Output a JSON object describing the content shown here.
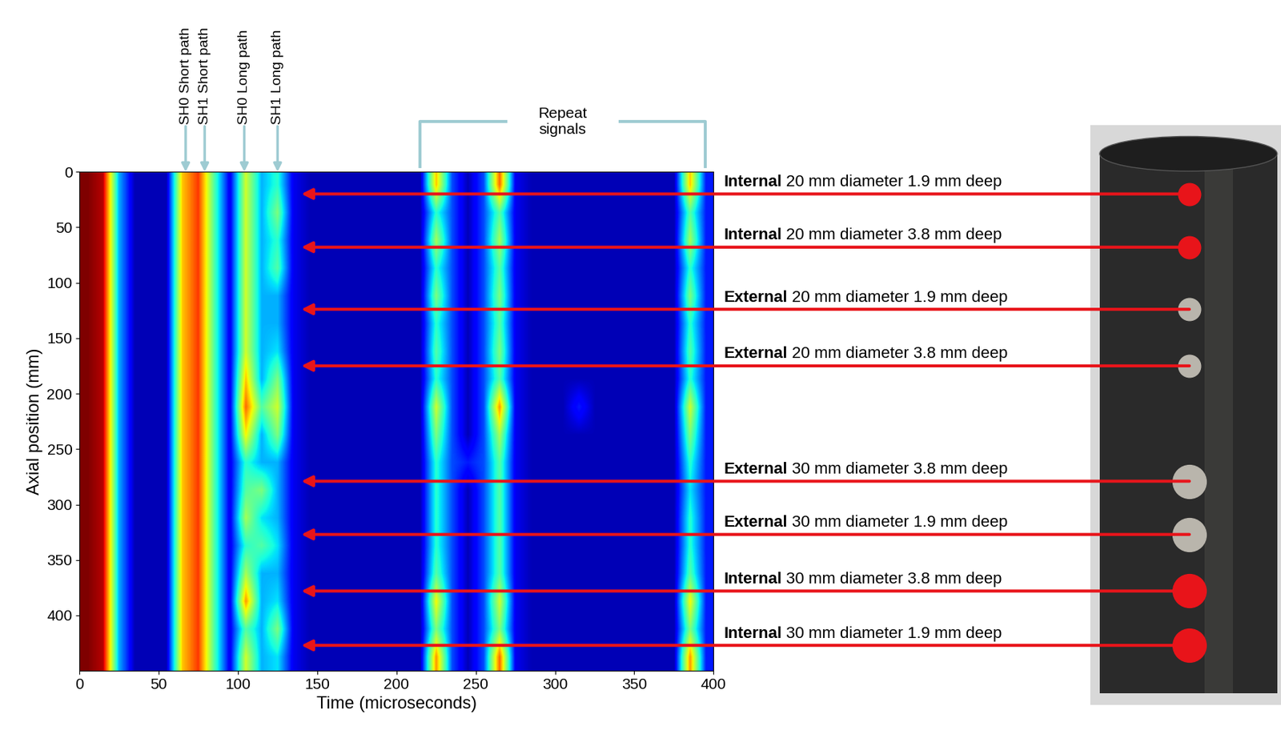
{
  "chart_data": {
    "type": "heatmap",
    "x_label": "Time (microseconds)",
    "y_label": "Axial position (mm)",
    "xlim": [
      0,
      400
    ],
    "ylim": [
      450,
      0
    ],
    "xticks": [
      0,
      50,
      100,
      150,
      200,
      250,
      300,
      350,
      400
    ],
    "yticks": [
      0,
      50,
      100,
      150,
      200,
      250,
      300,
      350,
      400
    ],
    "cells": {
      "x_edges": [
        0,
        10,
        20,
        30,
        40,
        50,
        60,
        70,
        80,
        90,
        100,
        110,
        120,
        130,
        140,
        150,
        160,
        170,
        180,
        190,
        200,
        210,
        220,
        230,
        240,
        250,
        260,
        270,
        280,
        290,
        300,
        310,
        320,
        330,
        340,
        350,
        360,
        370,
        380,
        390,
        400
      ],
      "y_edges": [
        0,
        25,
        50,
        75,
        100,
        125,
        150,
        175,
        200,
        225,
        250,
        275,
        300,
        325,
        350,
        375,
        400,
        425,
        450
      ],
      "value_range": [
        0,
        1
      ],
      "values": [
        [
          1.0,
          0.95,
          0.3,
          0.05,
          0.05,
          0.05,
          0.7,
          0.85,
          0.45,
          0.1,
          0.6,
          0.3,
          0.4,
          0.1,
          0.05,
          0.05,
          0.05,
          0.05,
          0.05,
          0.05,
          0.05,
          0.05,
          0.7,
          0.2,
          0.05,
          0.2,
          0.8,
          0.1,
          0.05,
          0.05,
          0.05,
          0.05,
          0.05,
          0.05,
          0.05,
          0.05,
          0.05,
          0.05,
          0.7,
          0.15
        ],
        [
          1.0,
          0.95,
          0.3,
          0.05,
          0.05,
          0.05,
          0.7,
          0.85,
          0.45,
          0.1,
          0.6,
          0.3,
          0.5,
          0.1,
          0.05,
          0.05,
          0.05,
          0.05,
          0.05,
          0.05,
          0.05,
          0.05,
          0.4,
          0.2,
          0.05,
          0.2,
          0.45,
          0.1,
          0.05,
          0.05,
          0.05,
          0.05,
          0.05,
          0.05,
          0.05,
          0.05,
          0.05,
          0.05,
          0.45,
          0.15
        ],
        [
          1.0,
          0.95,
          0.3,
          0.05,
          0.05,
          0.05,
          0.7,
          0.85,
          0.45,
          0.1,
          0.6,
          0.3,
          0.4,
          0.1,
          0.05,
          0.05,
          0.05,
          0.05,
          0.05,
          0.05,
          0.05,
          0.05,
          0.55,
          0.2,
          0.05,
          0.2,
          0.55,
          0.1,
          0.05,
          0.05,
          0.05,
          0.05,
          0.05,
          0.05,
          0.05,
          0.05,
          0.05,
          0.05,
          0.55,
          0.15
        ],
        [
          1.0,
          0.95,
          0.3,
          0.05,
          0.05,
          0.05,
          0.7,
          0.85,
          0.45,
          0.1,
          0.6,
          0.3,
          0.45,
          0.1,
          0.05,
          0.05,
          0.05,
          0.05,
          0.05,
          0.05,
          0.05,
          0.05,
          0.4,
          0.2,
          0.05,
          0.2,
          0.45,
          0.1,
          0.05,
          0.05,
          0.05,
          0.05,
          0.05,
          0.05,
          0.05,
          0.05,
          0.05,
          0.05,
          0.4,
          0.15
        ],
        [
          1.0,
          0.95,
          0.3,
          0.05,
          0.05,
          0.05,
          0.7,
          0.85,
          0.45,
          0.1,
          0.6,
          0.3,
          0.3,
          0.1,
          0.05,
          0.05,
          0.05,
          0.05,
          0.05,
          0.05,
          0.05,
          0.05,
          0.5,
          0.2,
          0.05,
          0.2,
          0.5,
          0.1,
          0.05,
          0.05,
          0.05,
          0.05,
          0.05,
          0.05,
          0.05,
          0.05,
          0.05,
          0.05,
          0.5,
          0.15
        ],
        [
          1.0,
          0.95,
          0.3,
          0.05,
          0.05,
          0.05,
          0.7,
          0.85,
          0.45,
          0.1,
          0.6,
          0.3,
          0.3,
          0.1,
          0.05,
          0.05,
          0.05,
          0.05,
          0.05,
          0.05,
          0.05,
          0.05,
          0.4,
          0.2,
          0.05,
          0.2,
          0.45,
          0.1,
          0.05,
          0.05,
          0.05,
          0.05,
          0.05,
          0.05,
          0.05,
          0.05,
          0.05,
          0.05,
          0.4,
          0.15
        ],
        [
          1.0,
          0.95,
          0.3,
          0.05,
          0.05,
          0.05,
          0.7,
          0.85,
          0.45,
          0.1,
          0.6,
          0.3,
          0.35,
          0.1,
          0.05,
          0.05,
          0.05,
          0.05,
          0.05,
          0.05,
          0.05,
          0.05,
          0.45,
          0.2,
          0.05,
          0.2,
          0.5,
          0.1,
          0.05,
          0.05,
          0.05,
          0.05,
          0.05,
          0.05,
          0.05,
          0.05,
          0.05,
          0.05,
          0.45,
          0.15
        ],
        [
          1.0,
          0.95,
          0.3,
          0.05,
          0.05,
          0.05,
          0.7,
          0.85,
          0.45,
          0.1,
          0.7,
          0.3,
          0.5,
          0.1,
          0.05,
          0.05,
          0.05,
          0.05,
          0.05,
          0.05,
          0.05,
          0.05,
          0.4,
          0.2,
          0.05,
          0.2,
          0.45,
          0.1,
          0.05,
          0.05,
          0.05,
          0.05,
          0.05,
          0.05,
          0.05,
          0.05,
          0.05,
          0.05,
          0.4,
          0.15
        ],
        [
          1.0,
          0.95,
          0.3,
          0.05,
          0.05,
          0.05,
          0.7,
          0.85,
          0.45,
          0.1,
          0.8,
          0.45,
          0.6,
          0.1,
          0.05,
          0.05,
          0.05,
          0.05,
          0.05,
          0.05,
          0.05,
          0.05,
          0.6,
          0.2,
          0.05,
          0.2,
          0.75,
          0.1,
          0.05,
          0.05,
          0.05,
          0.15,
          0.05,
          0.05,
          0.05,
          0.05,
          0.05,
          0.05,
          0.6,
          0.15
        ],
        [
          1.0,
          0.95,
          0.3,
          0.05,
          0.05,
          0.05,
          0.7,
          0.85,
          0.45,
          0.1,
          0.65,
          0.3,
          0.5,
          0.1,
          0.05,
          0.05,
          0.05,
          0.05,
          0.05,
          0.05,
          0.05,
          0.05,
          0.5,
          0.2,
          0.05,
          0.2,
          0.55,
          0.1,
          0.05,
          0.05,
          0.05,
          0.05,
          0.05,
          0.05,
          0.05,
          0.05,
          0.05,
          0.05,
          0.5,
          0.15
        ],
        [
          1.0,
          0.95,
          0.3,
          0.05,
          0.05,
          0.05,
          0.7,
          0.85,
          0.45,
          0.1,
          0.4,
          0.3,
          0.3,
          0.1,
          0.05,
          0.05,
          0.05,
          0.05,
          0.05,
          0.05,
          0.05,
          0.05,
          0.4,
          0.2,
          0.15,
          0.2,
          0.45,
          0.1,
          0.05,
          0.05,
          0.05,
          0.05,
          0.05,
          0.05,
          0.05,
          0.05,
          0.05,
          0.05,
          0.4,
          0.15
        ],
        [
          1.0,
          0.95,
          0.3,
          0.05,
          0.05,
          0.05,
          0.7,
          0.85,
          0.45,
          0.1,
          0.45,
          0.5,
          0.3,
          0.1,
          0.05,
          0.05,
          0.05,
          0.05,
          0.05,
          0.05,
          0.05,
          0.05,
          0.4,
          0.2,
          0.05,
          0.2,
          0.45,
          0.1,
          0.05,
          0.05,
          0.05,
          0.05,
          0.05,
          0.05,
          0.05,
          0.05,
          0.05,
          0.05,
          0.35,
          0.15
        ],
        [
          1.0,
          0.95,
          0.3,
          0.05,
          0.05,
          0.05,
          0.7,
          0.85,
          0.45,
          0.1,
          0.55,
          0.35,
          0.3,
          0.1,
          0.05,
          0.05,
          0.05,
          0.05,
          0.05,
          0.05,
          0.05,
          0.05,
          0.4,
          0.2,
          0.05,
          0.2,
          0.45,
          0.1,
          0.05,
          0.05,
          0.05,
          0.05,
          0.05,
          0.05,
          0.05,
          0.05,
          0.05,
          0.05,
          0.4,
          0.15
        ],
        [
          1.0,
          0.95,
          0.3,
          0.05,
          0.05,
          0.05,
          0.7,
          0.85,
          0.45,
          0.1,
          0.4,
          0.45,
          0.35,
          0.1,
          0.05,
          0.05,
          0.05,
          0.05,
          0.05,
          0.05,
          0.05,
          0.05,
          0.4,
          0.2,
          0.05,
          0.2,
          0.45,
          0.1,
          0.05,
          0.05,
          0.05,
          0.05,
          0.05,
          0.05,
          0.05,
          0.05,
          0.05,
          0.05,
          0.4,
          0.15
        ],
        [
          1.0,
          0.95,
          0.3,
          0.05,
          0.05,
          0.05,
          0.7,
          0.85,
          0.45,
          0.1,
          0.55,
          0.3,
          0.3,
          0.1,
          0.05,
          0.05,
          0.05,
          0.05,
          0.05,
          0.05,
          0.05,
          0.05,
          0.45,
          0.2,
          0.05,
          0.2,
          0.45,
          0.1,
          0.05,
          0.05,
          0.05,
          0.05,
          0.05,
          0.05,
          0.05,
          0.05,
          0.05,
          0.05,
          0.45,
          0.15
        ],
        [
          1.0,
          0.95,
          0.3,
          0.05,
          0.05,
          0.05,
          0.7,
          0.85,
          0.45,
          0.1,
          0.75,
          0.3,
          0.35,
          0.1,
          0.05,
          0.05,
          0.05,
          0.05,
          0.05,
          0.05,
          0.05,
          0.05,
          0.65,
          0.2,
          0.05,
          0.2,
          0.6,
          0.1,
          0.05,
          0.05,
          0.05,
          0.05,
          0.05,
          0.05,
          0.05,
          0.05,
          0.05,
          0.05,
          0.65,
          0.15
        ],
        [
          1.0,
          0.95,
          0.3,
          0.05,
          0.05,
          0.05,
          0.7,
          0.85,
          0.45,
          0.1,
          0.45,
          0.3,
          0.5,
          0.1,
          0.05,
          0.05,
          0.05,
          0.05,
          0.05,
          0.05,
          0.05,
          0.05,
          0.5,
          0.2,
          0.05,
          0.2,
          0.5,
          0.1,
          0.05,
          0.05,
          0.05,
          0.05,
          0.05,
          0.05,
          0.05,
          0.05,
          0.05,
          0.05,
          0.5,
          0.15
        ],
        [
          1.0,
          0.95,
          0.3,
          0.05,
          0.05,
          0.05,
          0.7,
          0.85,
          0.45,
          0.1,
          0.6,
          0.3,
          0.35,
          0.1,
          0.05,
          0.05,
          0.05,
          0.05,
          0.05,
          0.05,
          0.05,
          0.05,
          0.75,
          0.2,
          0.05,
          0.2,
          0.8,
          0.1,
          0.05,
          0.05,
          0.05,
          0.05,
          0.05,
          0.05,
          0.05,
          0.05,
          0.05,
          0.05,
          0.75,
          0.15
        ]
      ]
    },
    "annotations": {
      "wave_paths": [
        {
          "label": "SH0 Short path",
          "time": 67
        },
        {
          "label": "SH1 Short path",
          "time": 79
        },
        {
          "label": "SH0 Long path",
          "time": 104
        },
        {
          "label": "SH1 Long path",
          "time": 125
        }
      ],
      "repeat_signals": {
        "label": "Repeat\nsignals",
        "time_range": [
          215,
          395
        ]
      },
      "arrow_time": 140,
      "defects": [
        {
          "location": "Internal",
          "description": "20 mm diameter 1.9 mm deep",
          "axial_position": 20,
          "diameter": 20,
          "color": "#e8141a"
        },
        {
          "location": "Internal",
          "description": "20 mm diameter 3.8 mm deep",
          "axial_position": 68,
          "diameter": 20,
          "color": "#e8141a"
        },
        {
          "location": "External",
          "description": "20 mm diameter 1.9 mm deep",
          "axial_position": 124,
          "diameter": 20,
          "color": "#b9b5ac"
        },
        {
          "location": "External",
          "description": "20 mm diameter 3.8 mm deep",
          "axial_position": 175,
          "diameter": 20,
          "color": "#b9b5ac"
        },
        {
          "location": "External",
          "description": "30 mm diameter 3.8 mm deep",
          "axial_position": 279,
          "diameter": 30,
          "color": "#b9b5ac"
        },
        {
          "location": "External",
          "description": "30 mm diameter 1.9 mm deep",
          "axial_position": 327,
          "diameter": 30,
          "color": "#b9b5ac"
        },
        {
          "location": "Internal",
          "description": "30 mm diameter 3.8 mm deep",
          "axial_position": 378,
          "diameter": 30,
          "color": "#e8141a"
        },
        {
          "location": "Internal",
          "description": "30 mm diameter 1.9 mm deep",
          "axial_position": 427,
          "diameter": 30,
          "color": "#e8141a"
        }
      ]
    }
  }
}
